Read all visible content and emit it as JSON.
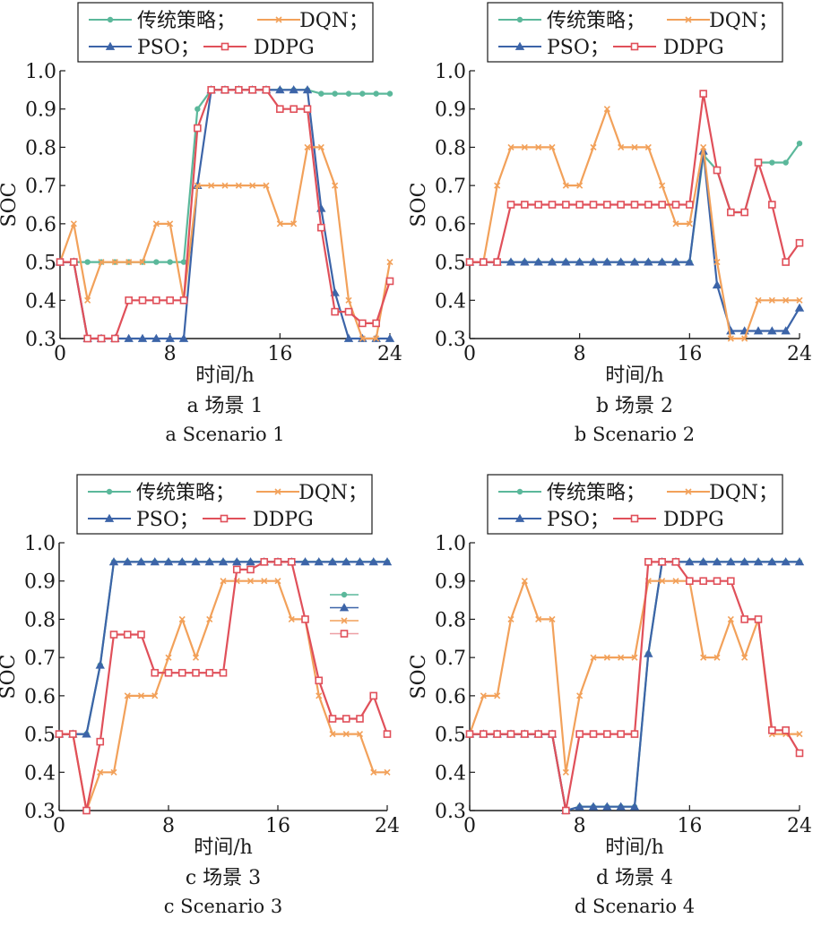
{
  "legend_labels": {
    "traditional": "传统策略；",
    "dqn": "DQN；",
    "pso": "PSO；",
    "ddpg": "DDPG"
  },
  "series_colors": {
    "traditional": "#5bb89b",
    "dqn": "#f2a15a",
    "pso": "#3c64a8",
    "ddpg": "#e0505a"
  },
  "series_markers": {
    "traditional": "circle",
    "dqn": "x",
    "pso": "triangle",
    "ddpg": "square"
  },
  "chart_data": [
    {
      "type": "line",
      "caption_cn": "a 场景 1",
      "caption_en": "a Scenario 1",
      "xlabel": "时间/h",
      "ylabel": "SOC",
      "xlim": [
        0,
        24
      ],
      "ylim": [
        0.3,
        1.0
      ],
      "xticks": [
        "0",
        "8",
        "16",
        "24"
      ],
      "yticks": [
        "0.3",
        "0.4",
        "0.5",
        "0.6",
        "0.7",
        "0.8",
        "0.9",
        "1.0"
      ],
      "grid": false,
      "legend_position": "top",
      "x": [
        0,
        1,
        2,
        3,
        4,
        5,
        6,
        7,
        8,
        9,
        10,
        11,
        12,
        13,
        14,
        15,
        16,
        17,
        18,
        19,
        20,
        21,
        22,
        23,
        24
      ],
      "series": [
        {
          "name": "传统策略",
          "key": "traditional",
          "values": [
            0.5,
            0.5,
            0.5,
            0.5,
            0.5,
            0.5,
            0.5,
            0.5,
            0.5,
            0.5,
            0.9,
            0.95,
            0.95,
            0.95,
            0.95,
            0.95,
            0.95,
            0.95,
            0.95,
            0.94,
            0.94,
            0.94,
            0.94,
            0.94,
            0.94
          ]
        },
        {
          "name": "DQN",
          "key": "dqn",
          "values": [
            0.5,
            0.6,
            0.4,
            0.5,
            0.5,
            0.5,
            0.5,
            0.6,
            0.6,
            0.4,
            0.7,
            0.7,
            0.7,
            0.7,
            0.7,
            0.7,
            0.6,
            0.6,
            0.8,
            0.8,
            0.7,
            0.4,
            0.3,
            0.3,
            0.5
          ]
        },
        {
          "name": "PSO",
          "key": "pso",
          "values": [
            0.5,
            0.5,
            0.3,
            0.3,
            0.3,
            0.3,
            0.3,
            0.3,
            0.3,
            0.3,
            0.7,
            0.95,
            0.95,
            0.95,
            0.95,
            0.95,
            0.95,
            0.95,
            0.95,
            0.64,
            0.42,
            0.3,
            0.3,
            0.3,
            0.3
          ]
        },
        {
          "name": "DDPG",
          "key": "ddpg",
          "values": [
            0.5,
            0.5,
            0.3,
            0.3,
            0.3,
            0.4,
            0.4,
            0.4,
            0.4,
            0.4,
            0.85,
            0.95,
            0.95,
            0.95,
            0.95,
            0.95,
            0.9,
            0.9,
            0.9,
            0.59,
            0.37,
            0.37,
            0.34,
            0.34,
            0.45
          ]
        }
      ]
    },
    {
      "type": "line",
      "caption_cn": "b 场景 2",
      "caption_en": "b Scenario 2",
      "xlabel": "时间/h",
      "ylabel": "SOC",
      "xlim": [
        0,
        24
      ],
      "ylim": [
        0.3,
        1.0
      ],
      "xticks": [
        "0",
        "8",
        "16",
        "24"
      ],
      "yticks": [
        "0.3",
        "0.4",
        "0.5",
        "0.6",
        "0.7",
        "0.8",
        "0.9",
        "1.0"
      ],
      "grid": false,
      "legend_position": "top",
      "x": [
        0,
        1,
        2,
        3,
        4,
        5,
        6,
        7,
        8,
        9,
        10,
        11,
        12,
        13,
        14,
        15,
        16,
        17,
        18,
        19,
        20,
        21,
        22,
        23,
        24
      ],
      "series": [
        {
          "name": "传统策略",
          "key": "traditional",
          "values": [
            0.5,
            0.5,
            0.5,
            0.5,
            0.5,
            0.5,
            0.5,
            0.5,
            0.5,
            0.5,
            0.5,
            0.5,
            0.5,
            0.5,
            0.5,
            0.5,
            0.5,
            0.78,
            0.74,
            0.63,
            0.63,
            0.76,
            0.76,
            0.76,
            0.81
          ]
        },
        {
          "name": "DQN",
          "key": "dqn",
          "values": [
            0.5,
            0.5,
            0.7,
            0.8,
            0.8,
            0.8,
            0.8,
            0.7,
            0.7,
            0.8,
            0.9,
            0.8,
            0.8,
            0.8,
            0.7,
            0.6,
            0.6,
            0.8,
            0.5,
            0.3,
            0.3,
            0.4,
            0.4,
            0.4,
            0.4
          ]
        },
        {
          "name": "PSO",
          "key": "pso",
          "values": [
            0.5,
            0.5,
            0.5,
            0.5,
            0.5,
            0.5,
            0.5,
            0.5,
            0.5,
            0.5,
            0.5,
            0.5,
            0.5,
            0.5,
            0.5,
            0.5,
            0.5,
            0.79,
            0.44,
            0.32,
            0.32,
            0.32,
            0.32,
            0.32,
            0.38
          ]
        },
        {
          "name": "DDPG",
          "key": "ddpg",
          "values": [
            0.5,
            0.5,
            0.5,
            0.65,
            0.65,
            0.65,
            0.65,
            0.65,
            0.65,
            0.65,
            0.65,
            0.65,
            0.65,
            0.65,
            0.65,
            0.65,
            0.65,
            0.94,
            0.74,
            0.63,
            0.63,
            0.76,
            0.65,
            0.5,
            0.55
          ]
        }
      ]
    },
    {
      "type": "line",
      "caption_cn": "c 场景 3",
      "caption_en": "c Scenario 3",
      "xlabel": "时间/h",
      "ylabel": "SOC",
      "xlim": [
        0,
        24
      ],
      "ylim": [
        0.3,
        1.0
      ],
      "xticks": [
        "0",
        "8",
        "16",
        "24"
      ],
      "yticks": [
        "0.3",
        "0.4",
        "0.5",
        "0.6",
        "0.7",
        "0.8",
        "0.9",
        "1.0"
      ],
      "grid": false,
      "legend_position": "top",
      "x": [
        0,
        1,
        2,
        3,
        4,
        5,
        6,
        7,
        8,
        9,
        10,
        11,
        12,
        13,
        14,
        15,
        16,
        17,
        18,
        19,
        20,
        21,
        22,
        23,
        24
      ],
      "series": [
        {
          "name": "传统策略",
          "key": "traditional",
          "values": [
            0.5,
            0.5,
            0.5,
            0.68,
            0.95,
            0.95,
            0.95,
            0.95,
            0.95,
            0.95,
            0.95,
            0.95,
            0.95,
            0.95,
            0.95,
            0.95,
            0.95,
            0.95,
            0.95,
            0.95,
            0.95,
            0.95,
            0.95,
            0.95,
            0.95
          ]
        },
        {
          "name": "DQN",
          "key": "dqn",
          "values": [
            0.5,
            0.5,
            0.3,
            0.4,
            0.4,
            0.6,
            0.6,
            0.6,
            0.7,
            0.8,
            0.7,
            0.8,
            0.9,
            0.9,
            0.9,
            0.9,
            0.9,
            0.8,
            0.8,
            0.6,
            0.5,
            0.5,
            0.5,
            0.4,
            0.4
          ]
        },
        {
          "name": "PSO",
          "key": "pso",
          "values": [
            0.5,
            0.5,
            0.5,
            0.68,
            0.95,
            0.95,
            0.95,
            0.95,
            0.95,
            0.95,
            0.95,
            0.95,
            0.95,
            0.95,
            0.95,
            0.95,
            0.95,
            0.95,
            0.95,
            0.95,
            0.95,
            0.95,
            0.95,
            0.95,
            0.95
          ]
        },
        {
          "name": "DDPG",
          "key": "ddpg",
          "values": [
            0.5,
            0.5,
            0.3,
            0.48,
            0.76,
            0.76,
            0.76,
            0.66,
            0.66,
            0.66,
            0.66,
            0.66,
            0.66,
            0.93,
            0.93,
            0.95,
            0.95,
            0.95,
            0.8,
            0.64,
            0.54,
            0.54,
            0.54,
            0.6,
            0.5
          ]
        }
      ]
    },
    {
      "type": "line",
      "caption_cn": "d 场景 4",
      "caption_en": "d Scenario 4",
      "xlabel": "时间/h",
      "ylabel": "SOC",
      "xlim": [
        0,
        24
      ],
      "ylim": [
        0.3,
        1.0
      ],
      "xticks": [
        "0",
        "8",
        "16",
        "24"
      ],
      "yticks": [
        "0.3",
        "0.4",
        "0.5",
        "0.6",
        "0.7",
        "0.8",
        "0.9",
        "1.0"
      ],
      "grid": false,
      "legend_position": "top",
      "x": [
        0,
        1,
        2,
        3,
        4,
        5,
        6,
        7,
        8,
        9,
        10,
        11,
        12,
        13,
        14,
        15,
        16,
        17,
        18,
        19,
        20,
        21,
        22,
        23,
        24
      ],
      "series": [
        {
          "name": "传统策略",
          "key": "traditional",
          "values": [
            0.5,
            0.5,
            0.5,
            0.5,
            0.5,
            0.5,
            0.5,
            0.3,
            0.31,
            0.31,
            0.31,
            0.31,
            0.31,
            0.71,
            0.95,
            0.95,
            0.95,
            0.95,
            0.95,
            0.95,
            0.95,
            0.95,
            0.95,
            0.95,
            0.95
          ]
        },
        {
          "name": "DQN",
          "key": "dqn",
          "values": [
            0.5,
            0.6,
            0.6,
            0.8,
            0.9,
            0.8,
            0.8,
            0.4,
            0.6,
            0.7,
            0.7,
            0.7,
            0.7,
            0.9,
            0.9,
            0.9,
            0.9,
            0.7,
            0.7,
            0.8,
            0.7,
            0.8,
            0.5,
            0.5,
            0.5
          ]
        },
        {
          "name": "PSO",
          "key": "pso",
          "values": [
            0.5,
            0.5,
            0.5,
            0.5,
            0.5,
            0.5,
            0.5,
            0.3,
            0.31,
            0.31,
            0.31,
            0.31,
            0.31,
            0.71,
            0.95,
            0.95,
            0.95,
            0.95,
            0.95,
            0.95,
            0.95,
            0.95,
            0.95,
            0.95,
            0.95
          ]
        },
        {
          "name": "DDPG",
          "key": "ddpg",
          "values": [
            0.5,
            0.5,
            0.5,
            0.5,
            0.5,
            0.5,
            0.5,
            0.3,
            0.5,
            0.5,
            0.5,
            0.5,
            0.5,
            0.95,
            0.95,
            0.95,
            0.9,
            0.9,
            0.9,
            0.9,
            0.8,
            0.8,
            0.51,
            0.51,
            0.45
          ]
        }
      ]
    }
  ]
}
